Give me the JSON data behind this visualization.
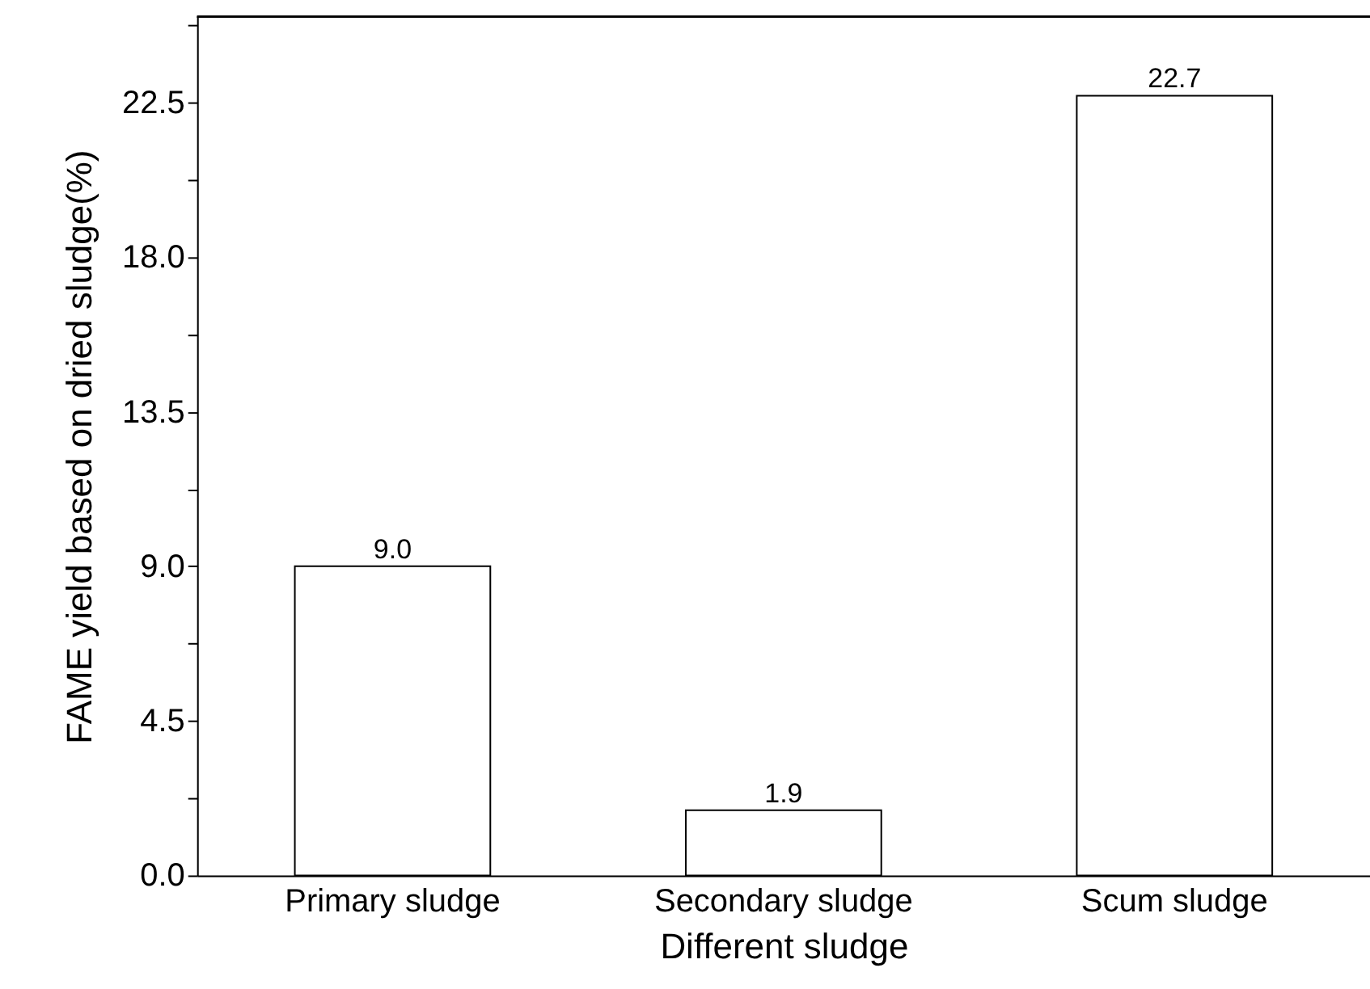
{
  "chart_data": {
    "type": "bar",
    "xlabel": "Different sludge",
    "ylabel": "FAME yield based on dried sludge(%)",
    "categories": [
      "Primary sludge",
      "Secondary sludge",
      "Scum sludge"
    ],
    "values": [
      9.0,
      1.9,
      22.7
    ],
    "color": "#ffffff",
    "value_labels": [
      "9.0",
      "1.9",
      "22.7"
    ],
    "ylim": [
      0,
      25
    ],
    "yticks": [
      {
        "value": 0,
        "label": "0.0"
      },
      {
        "value": 2.25,
        "label": null
      },
      {
        "value": 4.5,
        "label": "4.5"
      },
      {
        "value": 6.75,
        "label": null
      },
      {
        "value": 9,
        "label": "9.0"
      },
      {
        "value": 11.25,
        "label": null
      },
      {
        "value": 13.5,
        "label": "13.5"
      },
      {
        "value": 15.75,
        "label": null
      },
      {
        "value": 18,
        "label": "18.0"
      },
      {
        "value": 20.25,
        "label": null
      },
      {
        "value": 22.5,
        "label": "22.5"
      },
      {
        "value": 24.75,
        "label": null
      }
    ],
    "grid": false
  }
}
